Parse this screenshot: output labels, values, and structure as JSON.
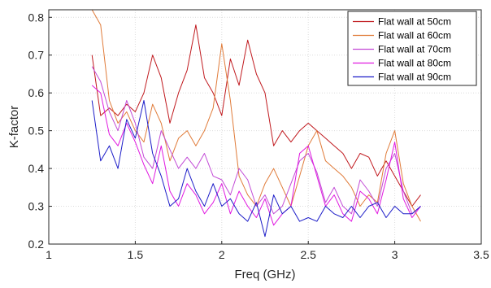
{
  "chart_data": {
    "type": "line",
    "xlabel": "Freq (GHz)",
    "ylabel": "K-factor",
    "xlim": [
      1,
      3.5
    ],
    "ylim": [
      0.2,
      0.82
    ],
    "xticks": [
      1,
      1.5,
      2,
      2.5,
      3,
      3.5
    ],
    "xtick_labels": [
      "1",
      "1.5",
      "2",
      "2.5",
      "3",
      "3.5"
    ],
    "yticks": [
      0.2,
      0.3,
      0.4,
      0.5,
      0.6,
      0.7,
      0.8
    ],
    "ytick_labels": [
      "0.2",
      "0.3",
      "0.4",
      "0.5",
      "0.6",
      "0.7",
      "0.8"
    ],
    "grid": true,
    "legend_position": "top-right",
    "x": [
      1.25,
      1.3,
      1.35,
      1.4,
      1.45,
      1.5,
      1.55,
      1.6,
      1.65,
      1.7,
      1.75,
      1.8,
      1.85,
      1.9,
      1.95,
      2.0,
      2.05,
      2.1,
      2.15,
      2.2,
      2.25,
      2.3,
      2.35,
      2.4,
      2.45,
      2.5,
      2.55,
      2.6,
      2.65,
      2.7,
      2.75,
      2.8,
      2.85,
      2.9,
      2.95,
      3.0,
      3.05,
      3.1,
      3.15
    ],
    "series": [
      {
        "name": "Flat wall at 50cm",
        "color": "#C0191E",
        "values": [
          0.7,
          0.54,
          0.56,
          0.54,
          0.57,
          0.55,
          0.6,
          0.7,
          0.64,
          0.52,
          0.6,
          0.66,
          0.78,
          0.64,
          0.6,
          0.54,
          0.69,
          0.62,
          0.74,
          0.65,
          0.6,
          0.46,
          0.5,
          0.47,
          0.5,
          0.52,
          0.5,
          0.48,
          0.46,
          0.44,
          0.4,
          0.44,
          0.43,
          0.38,
          0.42,
          0.38,
          0.34,
          0.3,
          0.33
        ]
      },
      {
        "name": "Flat wall at 60cm",
        "color": "#E07B39",
        "values": [
          0.82,
          0.78,
          0.58,
          0.52,
          0.55,
          0.5,
          0.47,
          0.57,
          0.52,
          0.42,
          0.48,
          0.5,
          0.46,
          0.5,
          0.56,
          0.73,
          0.58,
          0.38,
          0.33,
          0.3,
          0.36,
          0.4,
          0.35,
          0.3,
          0.38,
          0.46,
          0.5,
          0.42,
          0.4,
          0.38,
          0.35,
          0.3,
          0.33,
          0.31,
          0.44,
          0.5,
          0.36,
          0.3,
          0.26
        ]
      },
      {
        "name": "Flat wall at 70cm",
        "color": "#C24AD6",
        "values": [
          0.67,
          0.63,
          0.55,
          0.5,
          0.58,
          0.52,
          0.43,
          0.4,
          0.5,
          0.45,
          0.4,
          0.43,
          0.4,
          0.44,
          0.38,
          0.37,
          0.33,
          0.4,
          0.37,
          0.3,
          0.33,
          0.28,
          0.3,
          0.36,
          0.42,
          0.44,
          0.39,
          0.31,
          0.35,
          0.3,
          0.28,
          0.37,
          0.34,
          0.3,
          0.4,
          0.44,
          0.34,
          0.28,
          0.3
        ]
      },
      {
        "name": "Flat wall at 80cm",
        "color": "#E018E0",
        "values": [
          0.62,
          0.6,
          0.49,
          0.46,
          0.52,
          0.47,
          0.41,
          0.36,
          0.46,
          0.34,
          0.3,
          0.36,
          0.33,
          0.28,
          0.31,
          0.36,
          0.28,
          0.34,
          0.3,
          0.27,
          0.32,
          0.25,
          0.28,
          0.3,
          0.44,
          0.46,
          0.38,
          0.3,
          0.33,
          0.28,
          0.26,
          0.34,
          0.32,
          0.28,
          0.37,
          0.47,
          0.32,
          0.27,
          0.3
        ]
      },
      {
        "name": "Flat wall at 90cm",
        "color": "#1C1CC8",
        "values": [
          0.58,
          0.42,
          0.46,
          0.4,
          0.53,
          0.48,
          0.58,
          0.44,
          0.38,
          0.3,
          0.32,
          0.4,
          0.34,
          0.3,
          0.36,
          0.3,
          0.32,
          0.28,
          0.26,
          0.31,
          0.22,
          0.33,
          0.28,
          0.3,
          0.26,
          0.27,
          0.26,
          0.3,
          0.28,
          0.27,
          0.3,
          0.27,
          0.3,
          0.31,
          0.27,
          0.3,
          0.28,
          0.28,
          0.3
        ]
      }
    ]
  }
}
